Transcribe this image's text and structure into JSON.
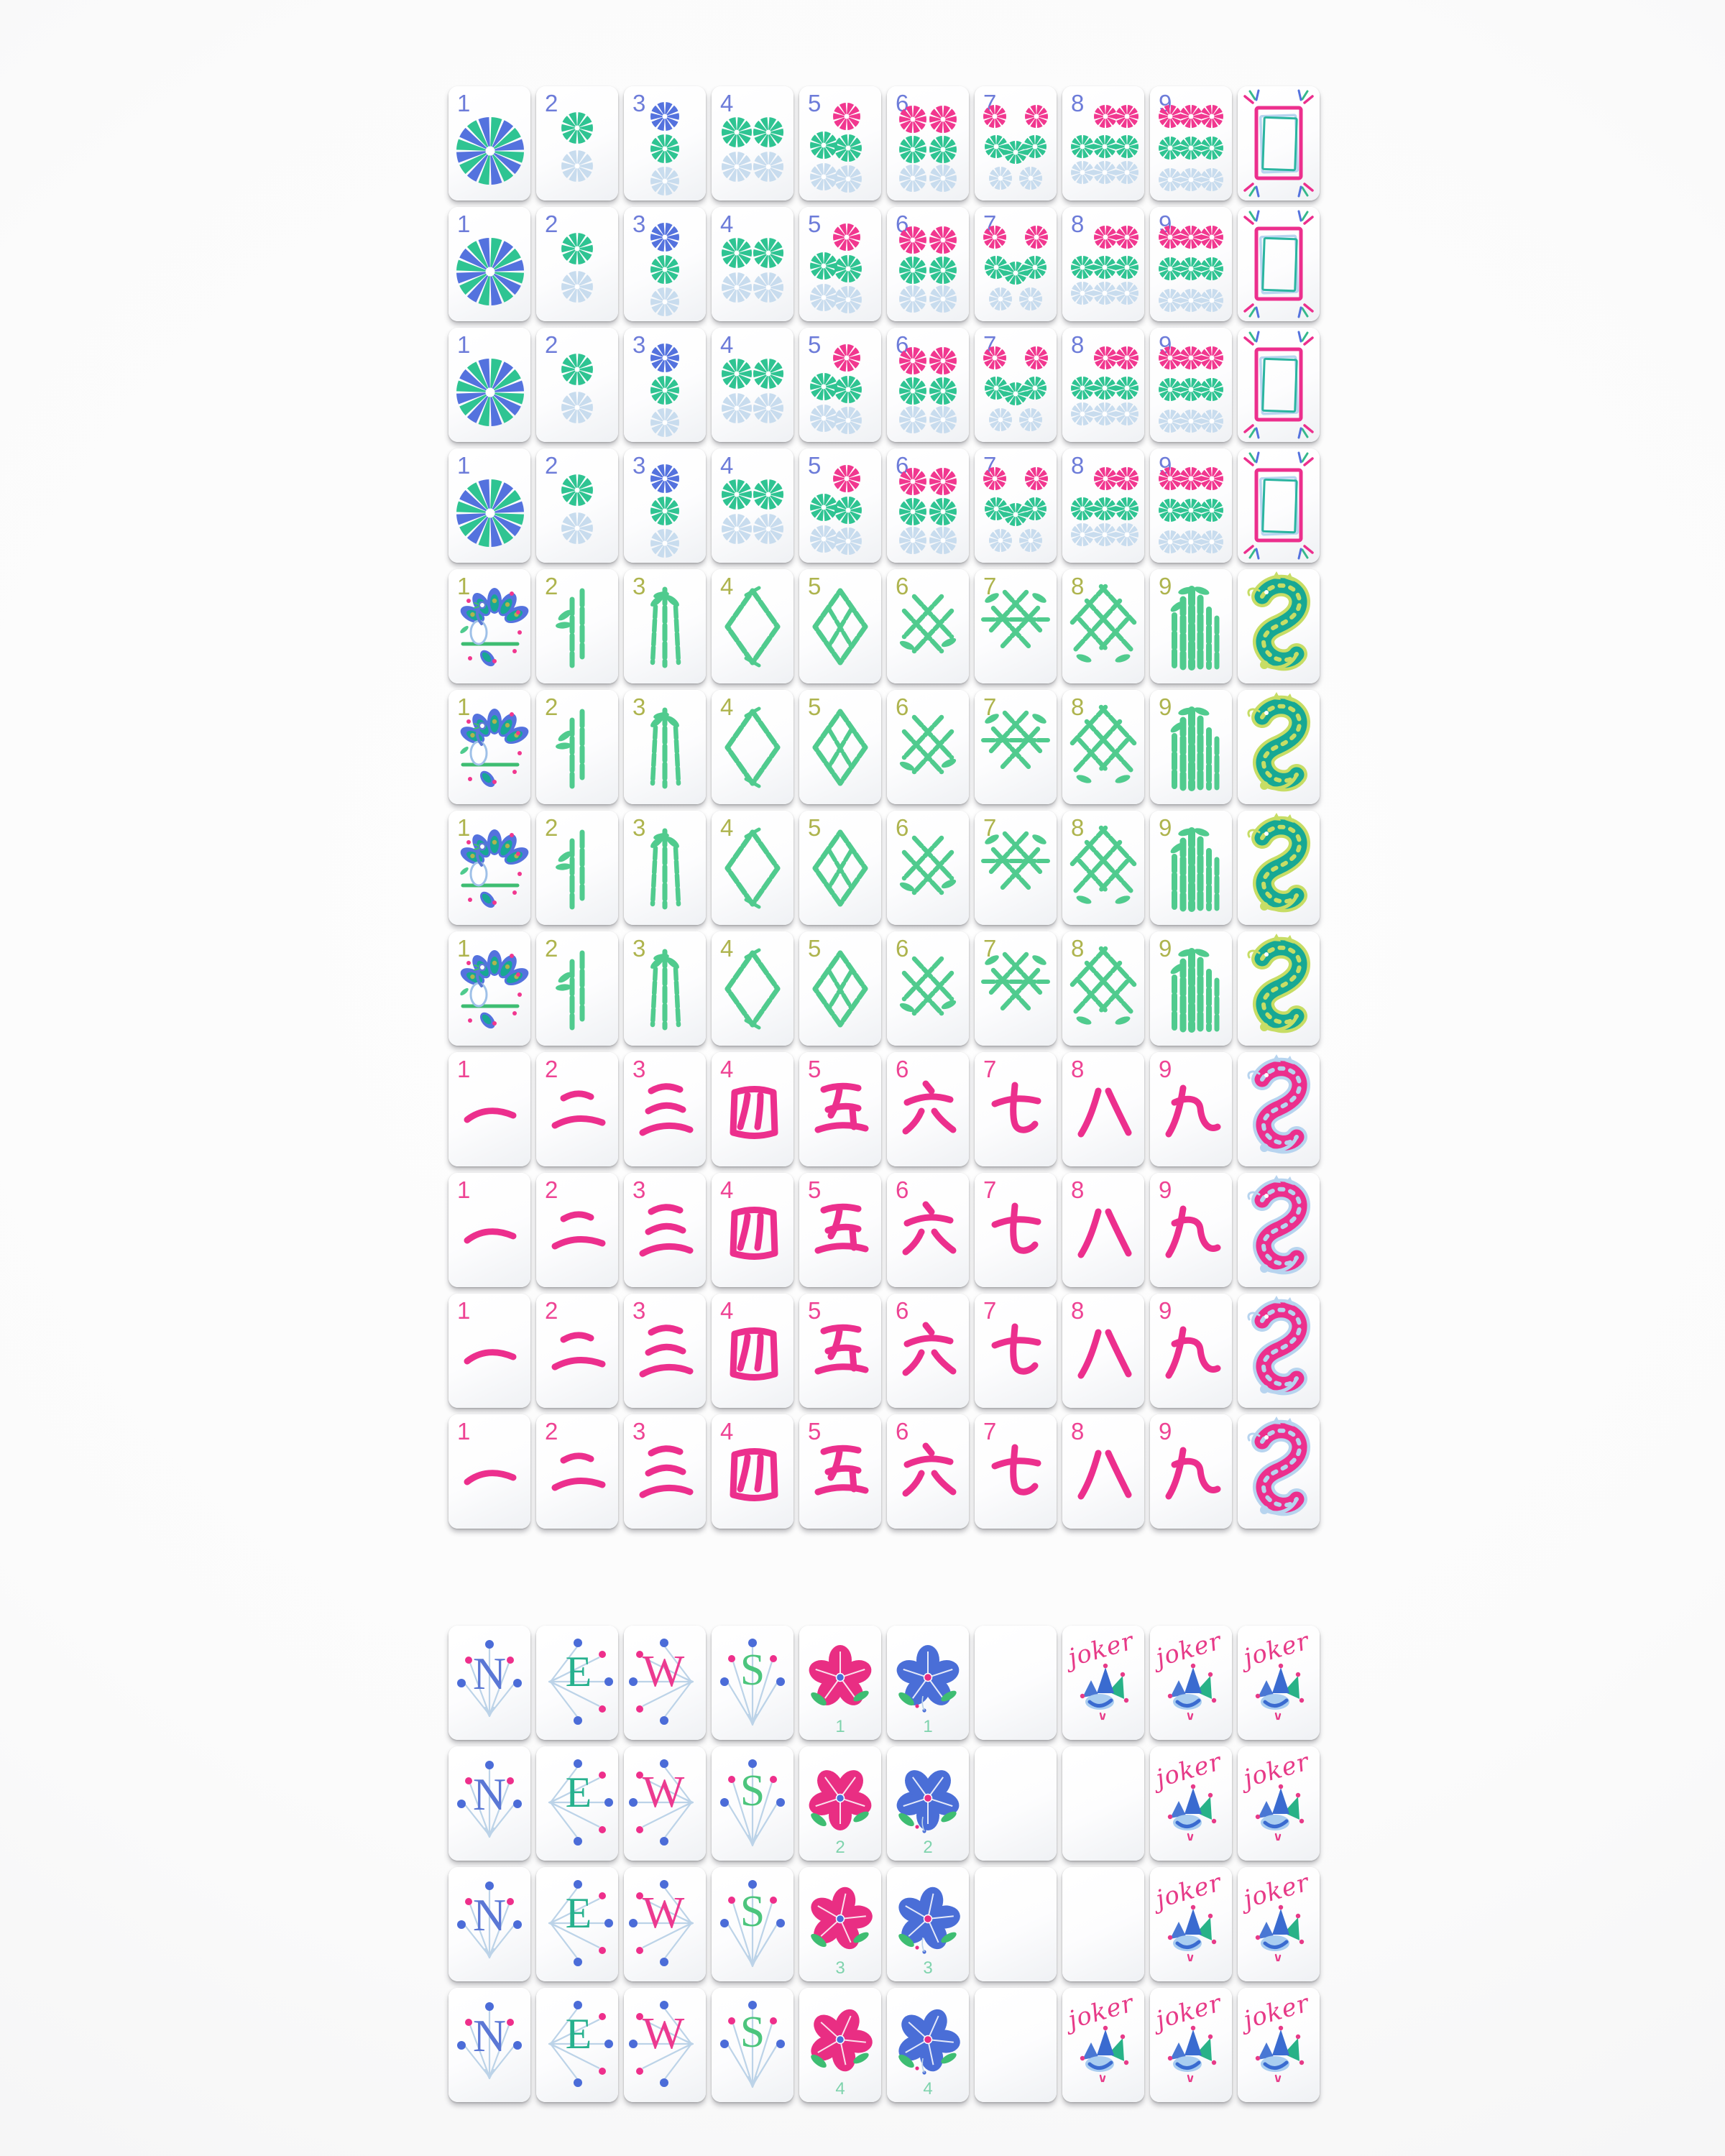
{
  "palette": {
    "num_blue": "#6d7cd9",
    "num_olive": "#aeb44e",
    "num_pink": "#ee4494",
    "dot_green": "#2fc492",
    "dot_lightblue": "#c8dcee",
    "dot_blue": "#5472de",
    "dot_pink": "#f1378f",
    "bamboo": "#50cb8e",
    "teal": "#17a894",
    "lime": "#c7dd65",
    "magenta": "#ec2f8d",
    "lightblue": "#b7d4ef",
    "compass": "#bcd3e8",
    "compass_blue_dot": "#4b6cd8",
    "compass_pink_dot": "#ee2f8b",
    "flower_pink": "#e92e83",
    "flower_blue": "#4a6ed7",
    "leaf": "#3ebd72",
    "flower_num": "#7fd3ad",
    "joker": "#e73a88",
    "hat_blue": "#3a6bd0",
    "hat_green": "#28b287",
    "hat_face": "#a9cdf0",
    "tile_face": "#fdfdfe",
    "background": "#fafafa"
  },
  "labels": {
    "numbers": [
      "1",
      "2",
      "3",
      "4",
      "5",
      "6",
      "7",
      "8",
      "9"
    ],
    "crak_glyphs": [
      "一",
      "二",
      "三",
      "四",
      "五",
      "六",
      "七",
      "八",
      "九"
    ],
    "flower_numbers": [
      "1",
      "2",
      "3",
      "4"
    ],
    "joker": "joker"
  },
  "winds": [
    {
      "letter": "N",
      "color": "#5b77d5"
    },
    {
      "letter": "E",
      "color": "#27b18e"
    },
    {
      "letter": "W",
      "color": "#ec3a90"
    },
    {
      "letter": "S",
      "color": "#4cc57d"
    }
  ],
  "dot_pips": {
    "1": [
      [
        58,
        90,
        47,
        "pinwheel"
      ]
    ],
    "2": [
      [
        57,
        58,
        22,
        "dot_green"
      ],
      [
        57,
        111,
        22,
        "dot_lightblue"
      ]
    ],
    "3": [
      [
        57,
        42,
        20,
        "dot_blue"
      ],
      [
        57,
        87,
        20,
        "dot_green"
      ],
      [
        57,
        132,
        20,
        "dot_lightblue"
      ]
    ],
    "4": [
      [
        35,
        64,
        21,
        "dot_green"
      ],
      [
        79,
        64,
        21,
        "dot_green"
      ],
      [
        35,
        112,
        21,
        "dot_lightblue"
      ],
      [
        79,
        112,
        21,
        "dot_lightblue"
      ]
    ],
    "5": [
      [
        66,
        42,
        19,
        "dot_pink"
      ],
      [
        34,
        82,
        19,
        "dot_green"
      ],
      [
        68,
        86,
        19,
        "dot_green"
      ],
      [
        34,
        126,
        19,
        "dot_lightblue"
      ],
      [
        68,
        129,
        19,
        "dot_lightblue"
      ]
    ],
    "6": [
      [
        36,
        46,
        19,
        "dot_pink"
      ],
      [
        78,
        46,
        19,
        "dot_pink"
      ],
      [
        36,
        88,
        19,
        "dot_green"
      ],
      [
        78,
        88,
        19,
        "dot_green"
      ],
      [
        36,
        128,
        19,
        "dot_lightblue"
      ],
      [
        78,
        128,
        19,
        "dot_lightblue"
      ]
    ],
    "7": [
      [
        28,
        42,
        16,
        "dot_pink"
      ],
      [
        86,
        42,
        16,
        "dot_pink"
      ],
      [
        30,
        84,
        16,
        "dot_green"
      ],
      [
        57,
        92,
        16,
        "dot_green"
      ],
      [
        84,
        84,
        16,
        "dot_green"
      ],
      [
        36,
        128,
        16,
        "dot_lightblue"
      ],
      [
        78,
        128,
        16,
        "dot_lightblue"
      ]
    ],
    "8": [
      [
        60,
        42,
        16,
        "dot_pink"
      ],
      [
        90,
        42,
        16,
        "dot_pink"
      ],
      [
        28,
        84,
        16,
        "dot_green"
      ],
      [
        59,
        84,
        16,
        "dot_green"
      ],
      [
        90,
        84,
        16,
        "dot_green"
      ],
      [
        28,
        120,
        16,
        "dot_lightblue"
      ],
      [
        59,
        120,
        16,
        "dot_lightblue"
      ],
      [
        90,
        120,
        16,
        "dot_lightblue"
      ]
    ],
    "9": [
      [
        28,
        42,
        16,
        "dot_pink"
      ],
      [
        57,
        42,
        16,
        "dot_pink"
      ],
      [
        86,
        42,
        16,
        "dot_pink"
      ],
      [
        28,
        86,
        16,
        "dot_green"
      ],
      [
        57,
        86,
        16,
        "dot_green"
      ],
      [
        86,
        86,
        16,
        "dot_green"
      ],
      [
        28,
        130,
        16,
        "dot_lightblue"
      ],
      [
        57,
        130,
        16,
        "dot_lightblue"
      ],
      [
        86,
        130,
        16,
        "dot_lightblue"
      ]
    ]
  },
  "layout": {
    "main_rows": [
      [
        "dot-1",
        "dot-2",
        "dot-3",
        "dot-4",
        "dot-5",
        "dot-6",
        "dot-7",
        "dot-8",
        "dot-9",
        "dragon-soap"
      ],
      [
        "dot-1",
        "dot-2",
        "dot-3",
        "dot-4",
        "dot-5",
        "dot-6",
        "dot-7",
        "dot-8",
        "dot-9",
        "dragon-soap"
      ],
      [
        "dot-1",
        "dot-2",
        "dot-3",
        "dot-4",
        "dot-5",
        "dot-6",
        "dot-7",
        "dot-8",
        "dot-9",
        "dragon-soap"
      ],
      [
        "dot-1",
        "dot-2",
        "dot-3",
        "dot-4",
        "dot-5",
        "dot-6",
        "dot-7",
        "dot-8",
        "dot-9",
        "dragon-soap"
      ],
      [
        "bam-1",
        "bam-2",
        "bam-3",
        "bam-4",
        "bam-5",
        "bam-6",
        "bam-7",
        "bam-8",
        "bam-9",
        "dragon-green"
      ],
      [
        "bam-1",
        "bam-2",
        "bam-3",
        "bam-4",
        "bam-5",
        "bam-6",
        "bam-7",
        "bam-8",
        "bam-9",
        "dragon-green"
      ],
      [
        "bam-1",
        "bam-2",
        "bam-3",
        "bam-4",
        "bam-5",
        "bam-6",
        "bam-7",
        "bam-8",
        "bam-9",
        "dragon-green"
      ],
      [
        "bam-1",
        "bam-2",
        "bam-3",
        "bam-4",
        "bam-5",
        "bam-6",
        "bam-7",
        "bam-8",
        "bam-9",
        "dragon-green"
      ],
      [
        "crak-1",
        "crak-2",
        "crak-3",
        "crak-4",
        "crak-5",
        "crak-6",
        "crak-7",
        "crak-8",
        "crak-9",
        "dragon-red"
      ],
      [
        "crak-1",
        "crak-2",
        "crak-3",
        "crak-4",
        "crak-5",
        "crak-6",
        "crak-7",
        "crak-8",
        "crak-9",
        "dragon-red"
      ],
      [
        "crak-1",
        "crak-2",
        "crak-3",
        "crak-4",
        "crak-5",
        "crak-6",
        "crak-7",
        "crak-8",
        "crak-9",
        "dragon-red"
      ],
      [
        "crak-1",
        "crak-2",
        "crak-3",
        "crak-4",
        "crak-5",
        "crak-6",
        "crak-7",
        "crak-8",
        "crak-9",
        "dragon-red"
      ]
    ],
    "bottom_rows": [
      [
        "wind-N",
        "wind-E",
        "wind-W",
        "wind-S",
        "flower-pink-1",
        "flower-blue-1",
        "blank",
        "joker",
        "joker",
        "joker"
      ],
      [
        "wind-N",
        "wind-E",
        "wind-W",
        "wind-S",
        "flower-pink-2",
        "flower-blue-2",
        "blank",
        "blank",
        "joker",
        "joker"
      ],
      [
        "wind-N",
        "wind-E",
        "wind-W",
        "wind-S",
        "flower-pink-3",
        "flower-blue-3",
        "blank",
        "blank",
        "joker",
        "joker"
      ],
      [
        "wind-N",
        "wind-E",
        "wind-W",
        "wind-S",
        "flower-pink-4",
        "flower-blue-4",
        "blank",
        "joker",
        "joker",
        "joker"
      ]
    ]
  }
}
